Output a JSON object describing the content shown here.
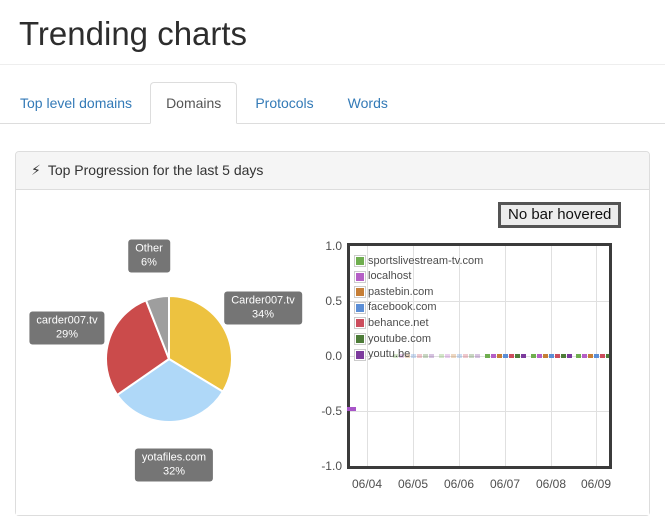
{
  "page": {
    "title": "Trending charts"
  },
  "tabs": [
    {
      "label": "Top level domains",
      "active": false
    },
    {
      "label": "Domains",
      "active": true
    },
    {
      "label": "Protocols",
      "active": false
    },
    {
      "label": "Words",
      "active": false
    }
  ],
  "panel": {
    "heading": "Top Progression for the last 5 days",
    "bolt_icon": "⚡"
  },
  "hover_status": "No bar hovered",
  "colors": {
    "tab_link": "#337ab7",
    "panel_heading_bg": "#f5f5f5",
    "pie_label_bg": "#757575",
    "plot_border": "#3b3b3b",
    "grid": "#e0e0e0"
  },
  "chart_data": [
    {
      "type": "pie",
      "start": "top",
      "direction": "clockwise",
      "slices": [
        {
          "label": "Carder007.tv",
          "pct": 34,
          "color": "#edc240"
        },
        {
          "label": "yotafiles.com",
          "pct": 32,
          "color": "#afd8f8"
        },
        {
          "label": "carder007.tv",
          "pct": 29,
          "color": "#cb4b4b"
        },
        {
          "label": "Other",
          "pct": 6,
          "color": "#9e9e9e"
        }
      ]
    },
    {
      "type": "bar",
      "categories": [
        "06/04",
        "06/05",
        "06/06",
        "06/07",
        "06/08",
        "06/09"
      ],
      "ylim": [
        -1.0,
        1.0
      ],
      "yticks": [
        1.0,
        0.5,
        0.0,
        -0.5,
        -1.0
      ],
      "grid": true,
      "legend_position": "top-left-inside",
      "series": [
        {
          "name": "sportslivestream-tv.com",
          "color": "#6fae4f",
          "values": [
            0,
            0.005,
            0.005,
            0.01,
            0.01,
            0.01
          ]
        },
        {
          "name": "localhost",
          "color": "#b55fc6",
          "values": [
            0,
            0.005,
            0.005,
            0.01,
            0.01,
            0.01
          ]
        },
        {
          "name": "pastebin.com",
          "color": "#c67e35",
          "values": [
            0,
            0.005,
            0.005,
            0.01,
            0.01,
            0.01
          ]
        },
        {
          "name": "facebook.com",
          "color": "#5b8ed6",
          "values": [
            0,
            0.005,
            0.005,
            0.01,
            0.01,
            0.01
          ]
        },
        {
          "name": "behance.net",
          "color": "#cc4d5d",
          "values": [
            0,
            0.005,
            0.005,
            0.01,
            0.01,
            0.01
          ]
        },
        {
          "name": "youtube.com",
          "color": "#4d7c38",
          "values": [
            0,
            0.005,
            0.005,
            0.01,
            0.01,
            0.01
          ]
        },
        {
          "name": "youtu.be",
          "color": "#7c3a9d",
          "values": [
            0,
            0.005,
            0.005,
            0.01,
            0.01,
            0.01
          ]
        }
      ],
      "edge_marker_color": "#a855c8"
    }
  ]
}
